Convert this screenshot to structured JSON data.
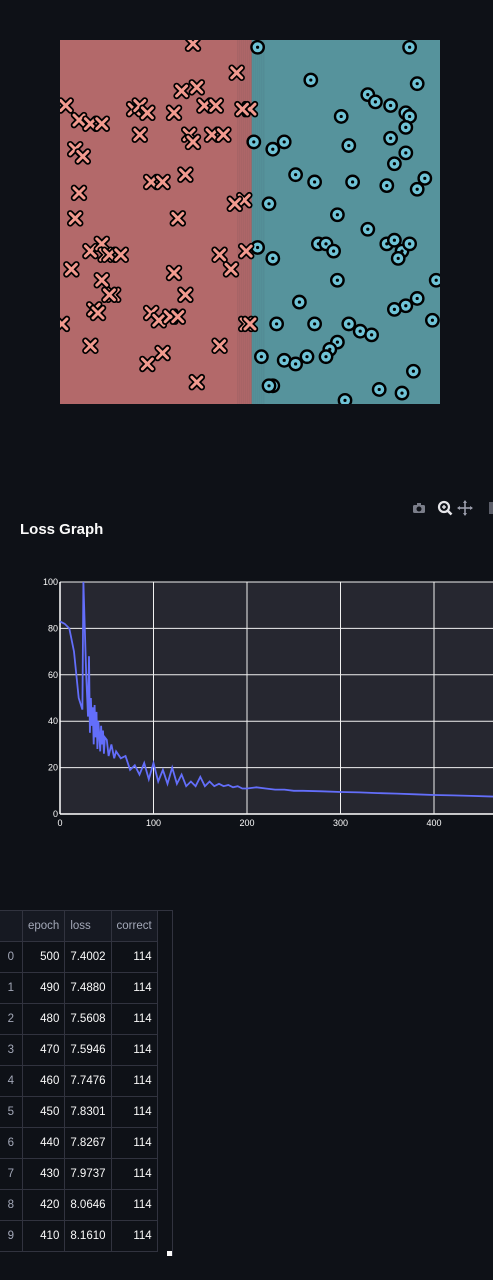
{
  "colors": {
    "background": "#0e1117",
    "region_x": "#b3696a",
    "region_o": "#56939c",
    "marker_x_fill": "#f29a8f",
    "marker_o_fill": "#6fc3d6",
    "loss_line": "#636efa",
    "plot_bg": "#262730"
  },
  "scatter_data": {
    "type": "scatter",
    "xlim": [
      0,
      100
    ],
    "ylim": [
      0,
      100
    ],
    "boundary_x": 50.5,
    "class_x": [
      [
        35,
        99
      ],
      [
        46.5,
        91
      ],
      [
        1.5,
        82
      ],
      [
        5,
        78
      ],
      [
        8,
        77
      ],
      [
        11,
        77
      ],
      [
        19.5,
        81
      ],
      [
        21,
        82
      ],
      [
        23,
        80
      ],
      [
        30,
        80
      ],
      [
        32,
        86
      ],
      [
        36,
        87
      ],
      [
        38,
        82
      ],
      [
        41,
        82
      ],
      [
        21,
        74
      ],
      [
        34,
        74
      ],
      [
        35,
        72
      ],
      [
        40,
        74
      ],
      [
        43,
        74
      ],
      [
        4,
        70
      ],
      [
        6,
        68
      ],
      [
        24,
        61
      ],
      [
        27,
        61
      ],
      [
        33,
        63
      ],
      [
        48.5,
        56
      ],
      [
        46,
        55
      ],
      [
        5,
        58
      ],
      [
        4,
        51
      ],
      [
        31,
        51
      ],
      [
        8,
        42
      ],
      [
        11,
        44
      ],
      [
        12,
        41
      ],
      [
        13,
        41
      ],
      [
        16,
        41
      ],
      [
        42,
        41
      ],
      [
        49,
        42
      ],
      [
        3,
        37
      ],
      [
        30,
        36
      ],
      [
        45,
        37
      ],
      [
        11,
        34
      ],
      [
        14,
        30
      ],
      [
        13,
        30
      ],
      [
        33,
        30
      ],
      [
        9,
        26
      ],
      [
        10,
        25
      ],
      [
        24,
        25
      ],
      [
        26,
        23
      ],
      [
        29,
        24
      ],
      [
        31,
        24
      ],
      [
        0.5,
        22
      ],
      [
        49,
        22
      ],
      [
        50,
        22
      ],
      [
        8,
        16
      ],
      [
        42,
        16
      ],
      [
        27,
        14
      ],
      [
        23,
        11
      ],
      [
        36,
        6
      ],
      [
        50,
        81
      ],
      [
        48,
        81
      ]
    ],
    "class_o": [
      [
        52,
        98
      ],
      [
        92,
        98
      ],
      [
        66,
        89
      ],
      [
        94,
        88
      ],
      [
        81,
        85
      ],
      [
        83,
        83
      ],
      [
        87,
        82
      ],
      [
        91,
        80
      ],
      [
        74,
        79
      ],
      [
        92,
        79
      ],
      [
        91,
        76
      ],
      [
        87,
        73
      ],
      [
        51,
        72
      ],
      [
        56,
        70
      ],
      [
        59,
        72
      ],
      [
        76,
        71
      ],
      [
        91,
        69
      ],
      [
        88,
        66
      ],
      [
        62,
        63
      ],
      [
        67,
        61
      ],
      [
        77,
        61
      ],
      [
        86,
        60
      ],
      [
        96,
        62
      ],
      [
        94,
        59
      ],
      [
        55,
        55
      ],
      [
        73,
        52
      ],
      [
        81,
        48
      ],
      [
        86,
        44
      ],
      [
        52,
        43
      ],
      [
        56,
        40
      ],
      [
        68,
        44
      ],
      [
        70,
        44
      ],
      [
        72,
        42
      ],
      [
        88,
        45
      ],
      [
        90,
        42
      ],
      [
        92,
        44
      ],
      [
        89,
        40
      ],
      [
        73,
        34
      ],
      [
        99,
        34
      ],
      [
        91,
        27
      ],
      [
        94,
        29
      ],
      [
        88,
        26
      ],
      [
        63,
        28
      ],
      [
        57,
        22
      ],
      [
        67,
        22
      ],
      [
        76,
        22
      ],
      [
        79,
        20
      ],
      [
        82,
        19
      ],
      [
        73,
        17
      ],
      [
        71,
        15
      ],
      [
        65,
        13
      ],
      [
        59,
        12
      ],
      [
        53,
        13
      ],
      [
        62,
        11
      ],
      [
        70,
        13
      ],
      [
        56,
        5
      ],
      [
        84,
        4
      ],
      [
        90,
        3
      ],
      [
        75,
        1
      ],
      [
        93,
        9
      ],
      [
        98,
        23
      ],
      [
        55,
        5
      ]
    ]
  },
  "toolbar": {
    "icons": [
      "camera-icon",
      "zoom-icon",
      "pan-icon"
    ]
  },
  "loss_graph": {
    "title": "Loss Graph"
  },
  "chart_data": {
    "type": "line",
    "title": "",
    "xlabel": "",
    "ylabel": "",
    "xlim": [
      0,
      465
    ],
    "ylim": [
      0,
      100
    ],
    "xticks": [
      0,
      100,
      200,
      300,
      400
    ],
    "yticks": [
      0,
      20,
      40,
      60,
      80,
      100
    ],
    "grid": true,
    "series": [
      {
        "x": [
          0,
          5,
          10,
          15,
          20,
          24,
          25,
          28,
          30,
          31,
          32,
          33,
          34,
          35,
          36,
          37,
          38,
          39,
          40,
          41,
          42,
          43,
          44,
          45,
          46,
          47,
          48,
          50,
          52,
          55,
          58,
          60,
          65,
          70,
          75,
          80,
          85,
          90,
          95,
          100,
          105,
          110,
          115,
          120,
          125,
          130,
          135,
          140,
          145,
          150,
          155,
          160,
          165,
          170,
          175,
          180,
          185,
          190,
          195,
          200,
          210,
          220,
          230,
          240,
          250,
          260,
          280,
          300,
          320,
          340,
          360,
          380,
          400,
          420,
          440,
          465
        ],
        "y": [
          83,
          82,
          80,
          70,
          50,
          45,
          100,
          60,
          42,
          68,
          35,
          50,
          38,
          46,
          30,
          47,
          33,
          44,
          28,
          40,
          34,
          27,
          38,
          30,
          36,
          26,
          33,
          32,
          25,
          30,
          24,
          27,
          24,
          25,
          19,
          21,
          17,
          22,
          15,
          22,
          14,
          19,
          13,
          20,
          13,
          17,
          12,
          14,
          12,
          16,
          12,
          14,
          12,
          13,
          12,
          12.5,
          11.5,
          12,
          11,
          11,
          11.5,
          11,
          10.5,
          10.5,
          10,
          10,
          9.8,
          9.5,
          9.3,
          9,
          8.8,
          8.5,
          8.2,
          8,
          7.8,
          7.5
        ]
      }
    ]
  },
  "table": {
    "columns": [
      "",
      "epoch",
      "loss",
      "correct"
    ],
    "rows": [
      [
        "0",
        "500",
        "7.4002",
        "114"
      ],
      [
        "1",
        "490",
        "7.4880",
        "114"
      ],
      [
        "2",
        "480",
        "7.5608",
        "114"
      ],
      [
        "3",
        "470",
        "7.5946",
        "114"
      ],
      [
        "4",
        "460",
        "7.7476",
        "114"
      ],
      [
        "5",
        "450",
        "7.8301",
        "114"
      ],
      [
        "6",
        "440",
        "7.8267",
        "114"
      ],
      [
        "7",
        "430",
        "7.9737",
        "114"
      ],
      [
        "8",
        "420",
        "8.0646",
        "114"
      ],
      [
        "9",
        "410",
        "8.1610",
        "114"
      ]
    ]
  }
}
